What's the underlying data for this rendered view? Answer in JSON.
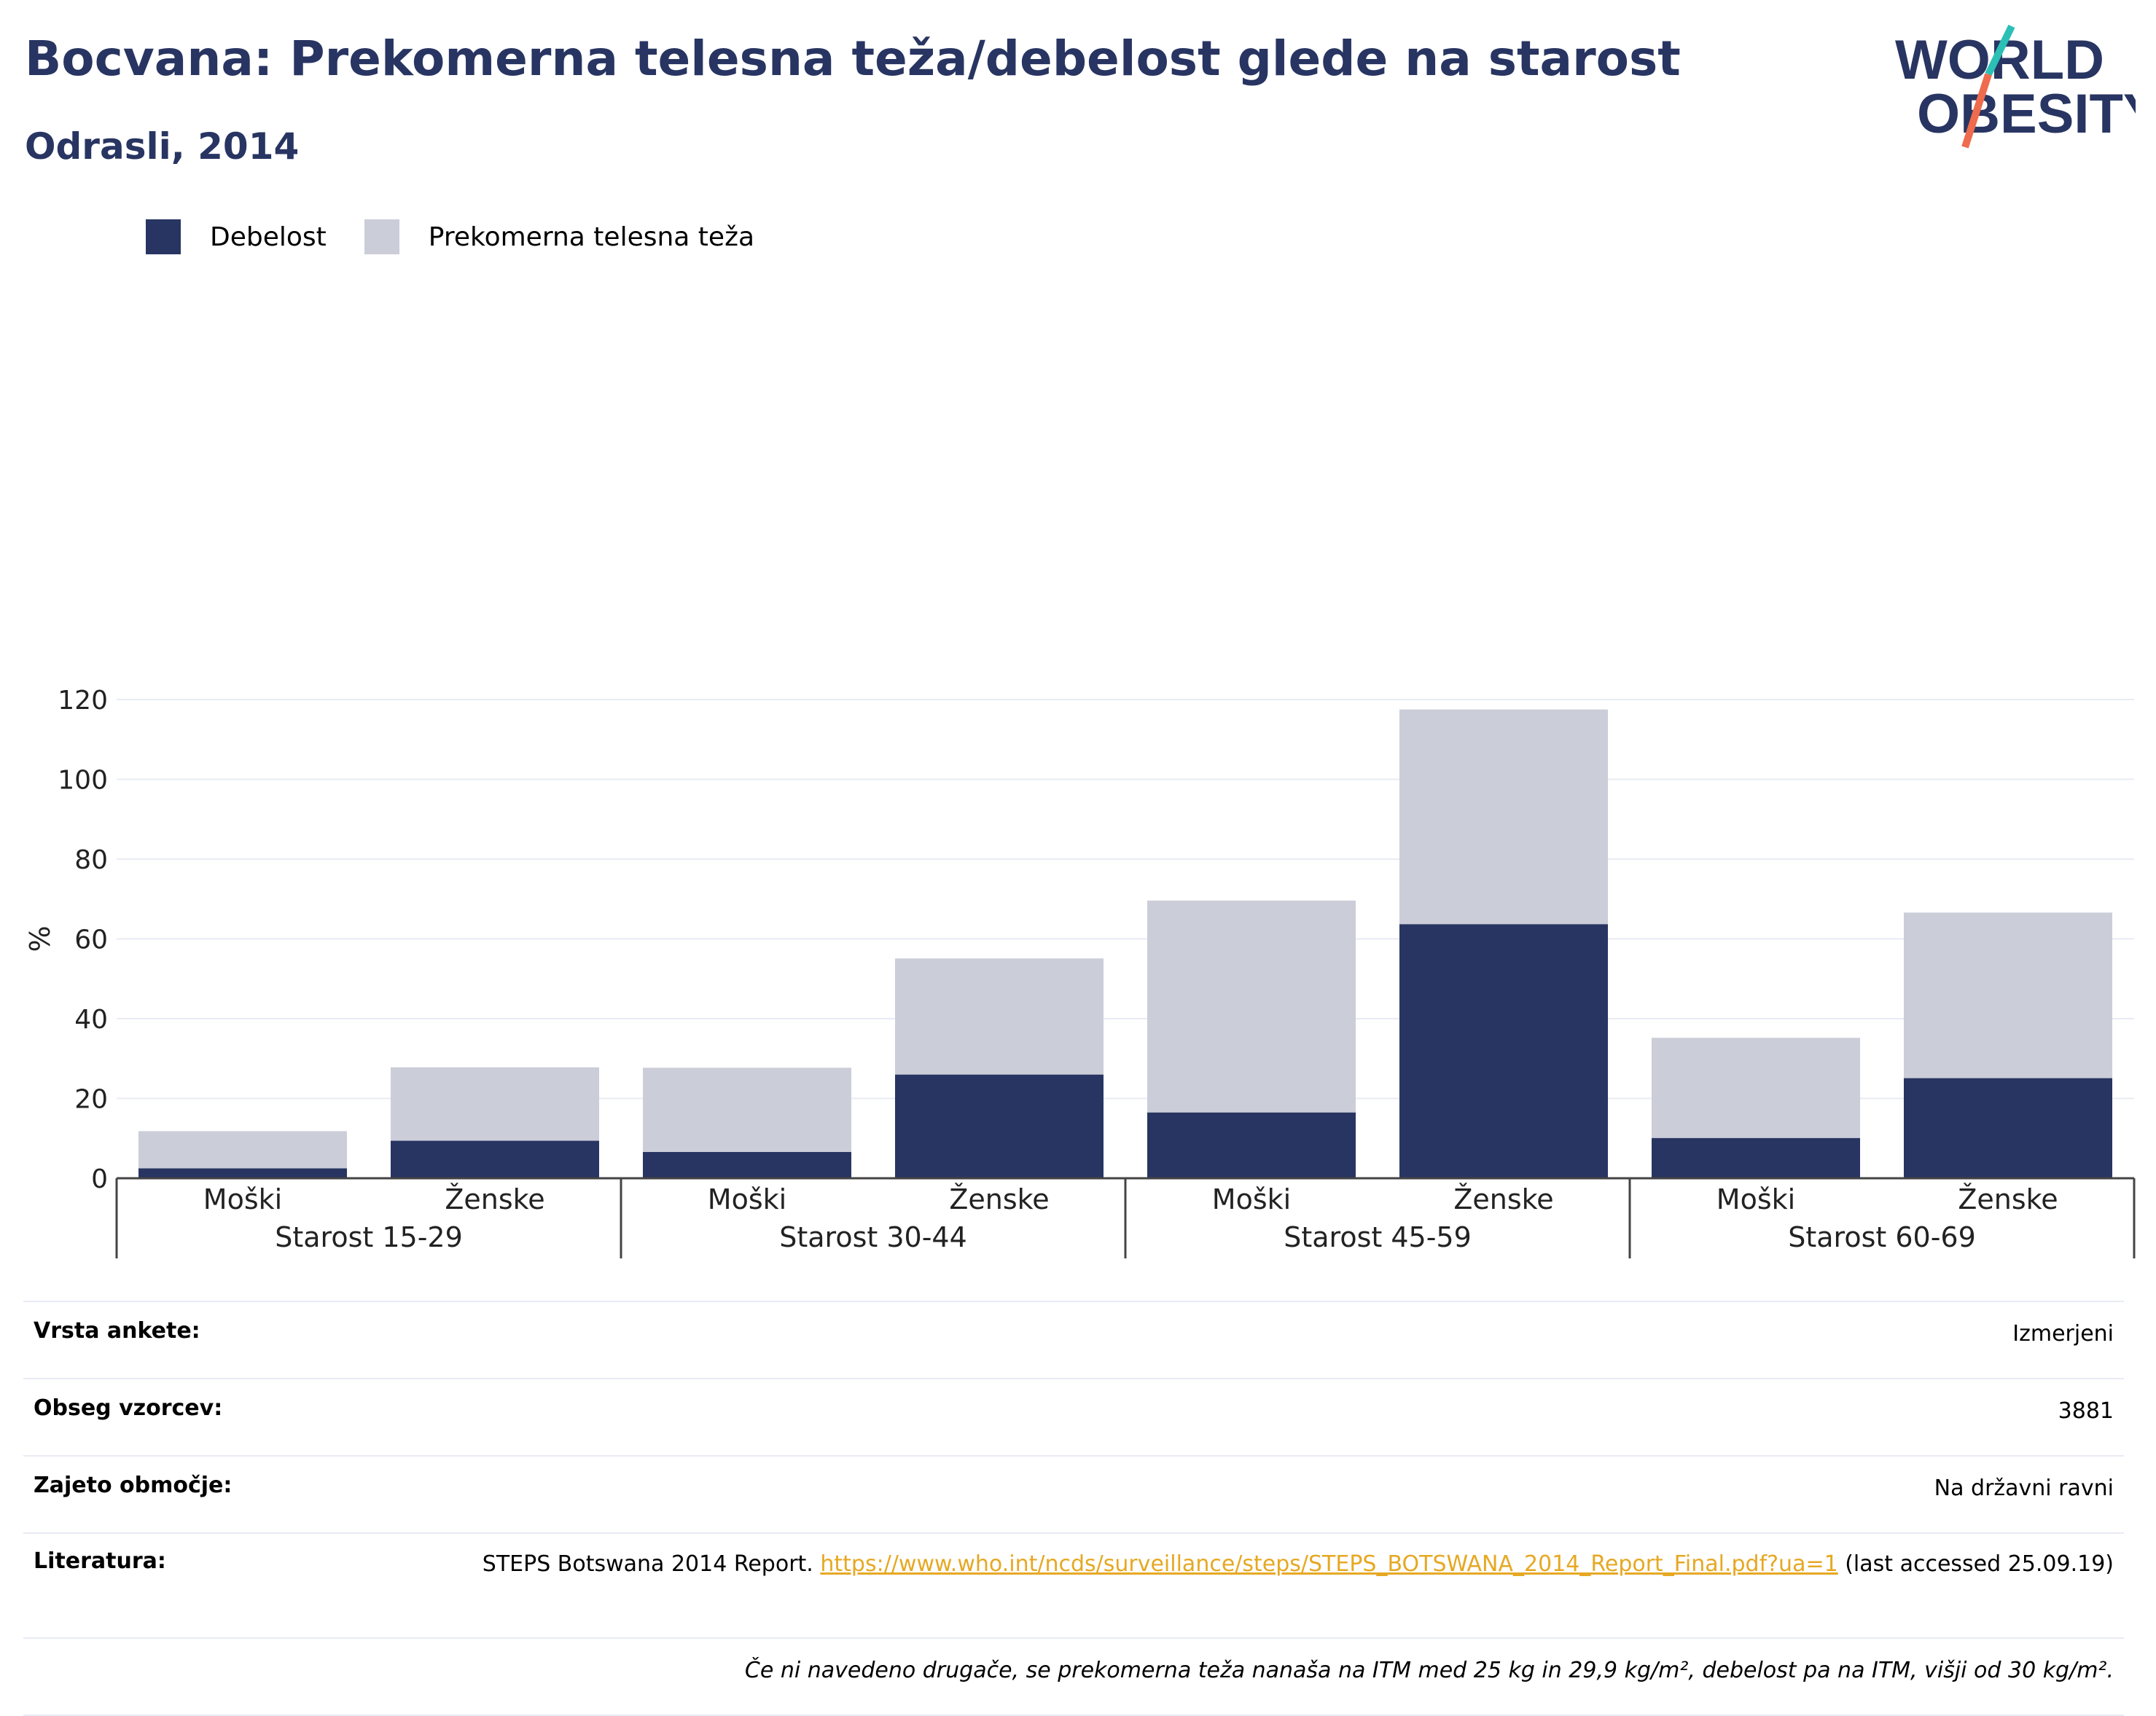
{
  "title": "Bocvana: Prekomerna telesna teža/debelost glede na starost",
  "subtitle": "Odrasli, 2014",
  "logo": {
    "line1": "WORLD",
    "line2": "OBESITY"
  },
  "colors": {
    "title": "#283562",
    "obesity": "#283562",
    "overweight": "#cbcdd8",
    "gridline": "#e8ebf3",
    "link": "#e6a823",
    "logo_teal": "#2bbfb6",
    "logo_orange": "#ee6b4d"
  },
  "legend": [
    {
      "label": "Debelost",
      "color": "#283562"
    },
    {
      "label": "Prekomerna telesna teža",
      "color": "#cbcdd8"
    }
  ],
  "chart_data": {
    "type": "bar",
    "stacked": true,
    "ylabel": "%",
    "ylim": [
      0,
      120
    ],
    "yticks": [
      0,
      20,
      40,
      60,
      80,
      100,
      120
    ],
    "grid": true,
    "legend_position": "top-left",
    "groups": [
      {
        "label": "Starost 15-29",
        "categories": [
          "Moški",
          "Ženske"
        ]
      },
      {
        "label": "Starost 30-44",
        "categories": [
          "Moški",
          "Ženske"
        ]
      },
      {
        "label": "Starost 45-59",
        "categories": [
          "Moški",
          "Ženske"
        ]
      },
      {
        "label": "Starost 60-69",
        "categories": [
          "Moški",
          "Ženske"
        ]
      }
    ],
    "series": [
      {
        "name": "Debelost",
        "color": "#283562",
        "values": [
          2.5,
          9.4,
          6.6,
          26.0,
          16.5,
          63.7,
          10.1,
          25.1
        ]
      },
      {
        "name": "Prekomerna telesna teža",
        "color": "#cbcdd8",
        "values": [
          9.3,
          18.4,
          21.1,
          29.1,
          53.1,
          53.8,
          25.1,
          41.5
        ]
      }
    ]
  },
  "info": {
    "survey_type": {
      "label": "Vrsta ankete:",
      "value": "Izmerjeni"
    },
    "sample_size": {
      "label": "Obseg vzorcev:",
      "value": "3881"
    },
    "coverage": {
      "label": "Zajeto območje:",
      "value": "Na državni ravni"
    },
    "literature": {
      "label": "Literatura:",
      "text_before": "STEPS Botswana 2014 Report. ",
      "link": "https://www.who.int/ncds/surveillance/steps/STEPS_BOTSWANA_2014_Report_Final.pdf?ua=1",
      "text_after": " (last accessed 25.09.19)"
    },
    "note": "Če ni navedeno drugače, se prekomerna teža nanaša na ITM med 25 kg in 29,9 kg/m², debelost pa na ITM, višji od 30 kg/m²."
  }
}
